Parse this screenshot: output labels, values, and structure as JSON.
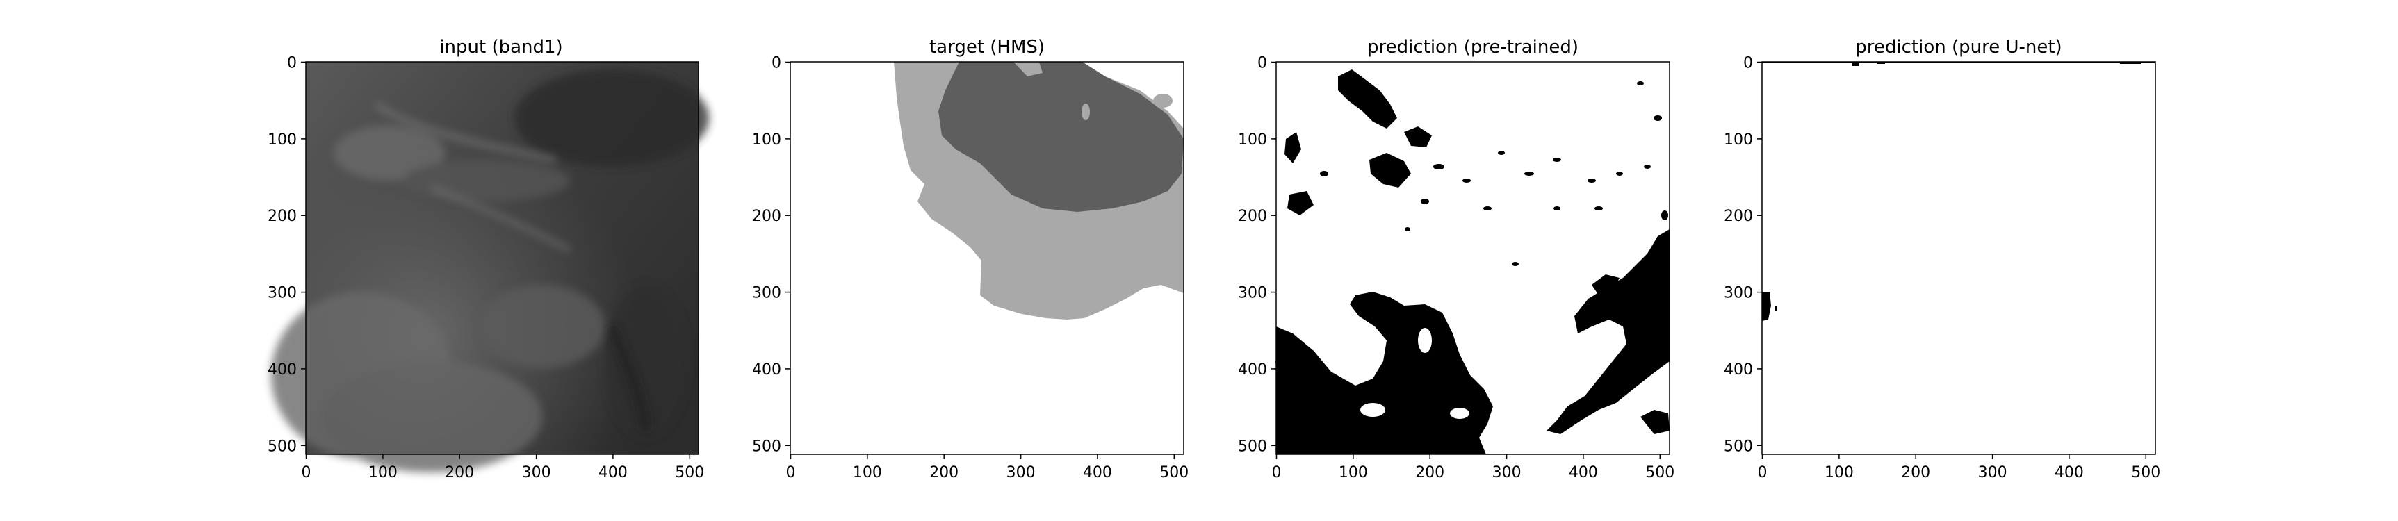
{
  "panels": [
    {
      "title": "input (band1)",
      "kind": "satellite-grayscale",
      "xticks": [
        "0",
        "100",
        "200",
        "300",
        "400",
        "500"
      ],
      "yticks": [
        "0",
        "100",
        "200",
        "300",
        "400",
        "500"
      ]
    },
    {
      "title": "target (HMS)",
      "kind": "mask-three-level",
      "xticks": [
        "0",
        "100",
        "200",
        "300",
        "400",
        "500"
      ],
      "yticks": [
        "0",
        "100",
        "200",
        "300",
        "400",
        "500"
      ]
    },
    {
      "title": "prediction (pre-trained)",
      "kind": "binary-mask",
      "xticks": [
        "0",
        "100",
        "200",
        "300",
        "400",
        "500"
      ],
      "yticks": [
        "0",
        "100",
        "200",
        "300",
        "400",
        "500"
      ]
    },
    {
      "title": "prediction (pure U-net)",
      "kind": "binary-mask-sparse",
      "xticks": [
        "0",
        "100",
        "200",
        "300",
        "400",
        "500"
      ],
      "yticks": [
        "0",
        "100",
        "200",
        "300",
        "400",
        "500"
      ]
    }
  ],
  "colors": {
    "background": "#ffffff",
    "mask_light": "#a9a9a9",
    "mask_dark": "#5e5e5e",
    "mask_black": "#000000"
  }
}
